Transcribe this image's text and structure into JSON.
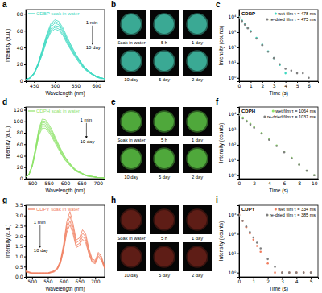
{
  "chart_data": [
    {
      "type": "line",
      "panel": "a",
      "title": "CDBP soak in water",
      "xlabel": "Wavelength (nm)",
      "ylabel": "Intensity (a.u.)",
      "color": "#3dd9c1",
      "x": [
        430,
        440,
        450,
        460,
        470,
        480,
        490,
        500,
        510,
        520,
        530,
        540,
        550,
        560,
        570,
        580,
        590,
        600,
        610,
        620
      ],
      "series": [
        {
          "values": [
            2,
            4,
            10,
            22,
            38,
            55,
            68,
            73,
            71,
            63,
            52,
            42,
            33,
            25,
            18,
            13,
            9,
            6,
            4,
            3
          ]
        },
        {
          "values": [
            2,
            4,
            10,
            21,
            37,
            53,
            66,
            71,
            69,
            61,
            50,
            41,
            32,
            24,
            17,
            13,
            9,
            6,
            4,
            3
          ]
        },
        {
          "values": [
            2,
            4,
            9,
            21,
            36,
            52,
            64,
            69,
            67,
            59,
            49,
            39,
            31,
            24,
            17,
            12,
            8,
            6,
            4,
            3
          ]
        },
        {
          "values": [
            2,
            4,
            9,
            20,
            35,
            50,
            62,
            66,
            65,
            57,
            47,
            38,
            30,
            23,
            16,
            12,
            8,
            5,
            4,
            3
          ]
        },
        {
          "values": [
            2,
            4,
            9,
            19,
            33,
            48,
            60,
            64,
            62,
            55,
            46,
            37,
            29,
            22,
            16,
            11,
            8,
            5,
            4,
            3
          ]
        },
        {
          "values": [
            2,
            3,
            8,
            19,
            32,
            47,
            58,
            62,
            60,
            54,
            44,
            36,
            28,
            21,
            15,
            11,
            8,
            5,
            3,
            3
          ]
        }
      ],
      "xlim": [
        430,
        620
      ],
      "ylim": [
        0,
        85
      ],
      "xticks": [
        450,
        500,
        550,
        600
      ],
      "yticks": [
        0,
        20,
        40,
        60,
        80
      ],
      "annotations": [
        {
          "text": "1 min",
          "x": 575,
          "y": 68
        },
        {
          "text": "10 day",
          "x": 575,
          "y": 38
        }
      ]
    },
    {
      "type": "image_grid",
      "panel": "b",
      "labels": [
        "Soak in water",
        "5 h",
        "1 day",
        "10 day",
        "5 day",
        "2 day"
      ],
      "color": "#3aa994"
    },
    {
      "type": "scatter",
      "panel": "c",
      "title": "CDBP",
      "xlabel": "Time (s)",
      "ylabel": "Intensity (counts)",
      "log": "y",
      "legend": "upper right",
      "marker": "circle",
      "xlim": [
        0,
        6.8
      ],
      "ylim": [
        0.6,
        30000
      ],
      "xticks": [
        0,
        1,
        2,
        3,
        4,
        5,
        6
      ],
      "yticks": [
        {
          "value": 1,
          "label": "10⁰"
        },
        {
          "value": 10,
          "label": "10¹"
        },
        {
          "value": 100,
          "label": "10²"
        },
        {
          "value": 1000,
          "label": "10³"
        },
        {
          "value": 10000,
          "label": "10⁴"
        }
      ],
      "series": [
        {
          "name": "wet film τ = 478 ms",
          "color": "#3dd9c1",
          "x": [
            0,
            0.25,
            0.5,
            0.75,
            1,
            1.5,
            2,
            2.5,
            3,
            3.5,
            4
          ],
          "values": [
            10000,
            5800,
            3400,
            2000,
            1200,
            420,
            150,
            55,
            20,
            7,
            2
          ]
        },
        {
          "name": "re-dried film τ = 475 ms",
          "color": "#7f7f7f",
          "x": [
            0,
            0.25,
            0.5,
            0.75,
            1,
            1.5,
            2,
            2.5,
            3,
            3.5,
            4,
            4.5,
            5,
            5.5,
            6
          ],
          "values": [
            9000,
            5300,
            3100,
            1800,
            1080,
            380,
            140,
            52,
            20,
            8,
            4,
            3,
            2,
            2,
            1
          ]
        }
      ]
    },
    {
      "type": "line",
      "panel": "d",
      "title": "CDPH soak in water",
      "xlabel": "Wavelength (nm)",
      "ylabel": "Intensity (a.u.)",
      "color": "#8fe36b",
      "x": [
        480,
        490,
        500,
        510,
        520,
        530,
        540,
        550,
        560,
        570,
        580,
        590,
        600,
        610,
        620,
        630,
        640,
        650,
        660,
        670,
        680,
        690,
        700,
        710,
        720
      ],
      "series": [
        {
          "values": [
            3,
            8,
            25,
            55,
            88,
            104,
            103,
            95,
            85,
            72,
            60,
            48,
            38,
            30,
            23,
            17,
            13,
            10,
            7,
            5,
            4,
            3,
            2,
            2,
            1
          ]
        },
        {
          "values": [
            3,
            8,
            24,
            53,
            85,
            101,
            100,
            92,
            82,
            70,
            58,
            47,
            37,
            29,
            22,
            16,
            13,
            10,
            7,
            5,
            4,
            3,
            2,
            2,
            1
          ]
        },
        {
          "values": [
            3,
            8,
            24,
            52,
            83,
            98,
            97,
            89,
            80,
            68,
            56,
            45,
            36,
            28,
            22,
            16,
            12,
            9,
            7,
            5,
            4,
            3,
            2,
            2,
            1
          ]
        },
        {
          "values": [
            3,
            7,
            23,
            50,
            80,
            95,
            94,
            86,
            77,
            66,
            55,
            44,
            35,
            27,
            21,
            15,
            12,
            9,
            6,
            5,
            4,
            3,
            2,
            2,
            1
          ]
        },
        {
          "values": [
            3,
            7,
            22,
            48,
            77,
            92,
            91,
            84,
            75,
            63,
            53,
            42,
            33,
            26,
            20,
            15,
            11,
            9,
            6,
            4,
            4,
            3,
            2,
            2,
            1
          ]
        },
        {
          "values": [
            3,
            7,
            21,
            47,
            75,
            88,
            88,
            81,
            72,
            61,
            51,
            41,
            32,
            26,
            20,
            14,
            11,
            9,
            6,
            4,
            3,
            3,
            2,
            2,
            1
          ]
        }
      ],
      "xlim": [
        480,
        720
      ],
      "ylim": [
        0,
        125
      ],
      "xticks": [
        500,
        550,
        600,
        650,
        700
      ],
      "yticks": [
        0,
        20,
        40,
        60,
        80,
        100,
        120
      ],
      "annotations": [
        {
          "text": "1 min",
          "x": 645,
          "y": 100
        },
        {
          "text": "10 day",
          "x": 645,
          "y": 62
        }
      ]
    },
    {
      "type": "image_grid",
      "panel": "e",
      "labels": [
        "Soak in water",
        "5 h",
        "1 day",
        "10 day",
        "5 day",
        "2 day"
      ],
      "color": "#4fa83b"
    },
    {
      "type": "scatter",
      "panel": "f",
      "title": "CDPH",
      "xlabel": "Time (s)",
      "ylabel": "Intensity (counts)",
      "log": "y",
      "legend": "upper right",
      "marker": "circle",
      "xlim": [
        0,
        10.5
      ],
      "ylim": [
        0.6,
        30000
      ],
      "xticks": [
        0,
        2,
        4,
        6,
        8,
        10
      ],
      "yticks": [
        {
          "value": 1,
          "label": "10⁰"
        },
        {
          "value": 10,
          "label": "10¹"
        },
        {
          "value": 100,
          "label": "10²"
        },
        {
          "value": 1000,
          "label": "10³"
        },
        {
          "value": 10000,
          "label": "10⁴"
        }
      ],
      "series": [
        {
          "name": "wet film τ = 1064 ms",
          "color": "#8fe36b",
          "x": [
            0,
            0.5,
            1,
            1.5,
            2,
            3,
            4,
            5,
            6,
            7,
            8,
            9,
            10
          ],
          "values": [
            10000,
            6200,
            3800,
            2400,
            1500,
            600,
            230,
            90,
            35,
            14,
            5,
            2,
            1
          ]
        },
        {
          "name": "re-dried film τ = 1037 ms",
          "color": "#7f7f7f",
          "x": [
            0,
            0.5,
            1,
            1.5,
            2,
            3,
            4,
            5,
            6,
            7,
            8,
            9,
            10
          ],
          "values": [
            9000,
            5500,
            3400,
            2100,
            1300,
            540,
            210,
            82,
            32,
            13,
            5,
            2,
            1
          ]
        }
      ]
    },
    {
      "type": "line",
      "panel": "g",
      "title": "CDPY soak in water",
      "xlabel": "Wavelength (nm)",
      "ylabel": "Intensity (a.u.)",
      "color": "#f07b5c",
      "x": [
        480,
        490,
        500,
        510,
        520,
        530,
        540,
        550,
        560,
        570,
        580,
        590,
        600,
        610,
        620,
        630,
        640,
        650,
        660,
        670,
        680,
        690,
        700,
        710,
        720,
        730
      ],
      "series": [
        {
          "values": [
            0.3,
            0.25,
            0.2,
            0.2,
            0.2,
            0.2,
            0.2,
            0.2,
            0.25,
            0.3,
            0.45,
            0.8,
            1.6,
            2.7,
            3.2,
            2.6,
            1.8,
            1.9,
            2.3,
            2.1,
            1.4,
            0.9,
            0.8,
            1.2,
            1.0,
            0.5
          ]
        },
        {
          "values": [
            0.28,
            0.23,
            0.19,
            0.19,
            0.19,
            0.19,
            0.19,
            0.19,
            0.23,
            0.28,
            0.42,
            0.74,
            1.49,
            2.51,
            2.98,
            2.42,
            1.67,
            1.77,
            2.14,
            1.95,
            1.3,
            0.84,
            0.74,
            1.12,
            0.93,
            0.47
          ]
        },
        {
          "values": [
            0.26,
            0.22,
            0.17,
            0.17,
            0.17,
            0.17,
            0.17,
            0.17,
            0.22,
            0.26,
            0.39,
            0.69,
            1.38,
            2.32,
            2.75,
            2.24,
            1.55,
            1.63,
            1.98,
            1.81,
            1.2,
            0.77,
            0.69,
            1.03,
            0.86,
            0.43
          ]
        },
        {
          "values": [
            0.24,
            0.2,
            0.16,
            0.16,
            0.16,
            0.16,
            0.16,
            0.16,
            0.2,
            0.24,
            0.36,
            0.64,
            1.28,
            2.16,
            2.56,
            2.08,
            1.44,
            1.52,
            1.84,
            1.68,
            1.12,
            0.72,
            0.64,
            0.96,
            0.8,
            0.4
          ]
        }
      ],
      "xlim": [
        480,
        730
      ],
      "ylim": [
        0,
        3.5
      ],
      "xticks": [
        500,
        550,
        600,
        650,
        700
      ],
      "yticks": [
        {
          "value": 0,
          "label": "0.0"
        },
        0.5,
        {
          "value": 1,
          "label": "1.0"
        },
        1.5,
        {
          "value": 2,
          "label": "2.0"
        },
        2.5,
        {
          "value": 3,
          "label": "3.0"
        },
        3.5
      ],
      "annotations": [
        {
          "text": "1 min",
          "x": 505,
          "y": 2.6
        },
        {
          "text": "10 day",
          "x": 505,
          "y": 1.2
        }
      ]
    },
    {
      "type": "image_grid",
      "panel": "h",
      "labels": [
        "Soak in water",
        "5 h",
        "1 day",
        "10 day",
        "5 day",
        "2 day"
      ],
      "color": "#5e1d16"
    },
    {
      "type": "scatter",
      "panel": "i",
      "title": "CDPY",
      "xlabel": "Time (s)",
      "ylabel": "Intensity (counts)",
      "log": "y",
      "legend": "upper right",
      "marker": "circle",
      "xlim": [
        0,
        5.5
      ],
      "ylim": [
        0.6,
        3000
      ],
      "xticks": [
        0,
        1,
        2,
        3,
        4,
        5
      ],
      "yticks": [
        {
          "value": 1,
          "label": "10⁰"
        },
        {
          "value": 10,
          "label": "10¹"
        },
        {
          "value": 100,
          "label": "10²"
        },
        {
          "value": 1000,
          "label": "10³"
        }
      ],
      "series": [
        {
          "name": "wet film τ = 334 ms",
          "color": "#f07b5c",
          "x": [
            0,
            0.25,
            0.5,
            0.75,
            1,
            1.25,
            1.5,
            2,
            2.5,
            3,
            3.5,
            4,
            4.5,
            5
          ],
          "values": [
            1000,
            470,
            220,
            105,
            50,
            24,
            12,
            3,
            1,
            1,
            1,
            1,
            1,
            1
          ]
        },
        {
          "name": "re-dried film τ = 385 ms",
          "color": "#7f7f7f",
          "x": [
            0,
            0.25,
            0.5,
            0.75,
            1,
            1.25,
            1.5,
            2,
            2.5,
            3,
            3.5,
            4,
            4.5,
            5
          ],
          "values": [
            900,
            470,
            245,
            125,
            65,
            35,
            18,
            5,
            2,
            1,
            1,
            1,
            1,
            1
          ]
        }
      ]
    }
  ]
}
